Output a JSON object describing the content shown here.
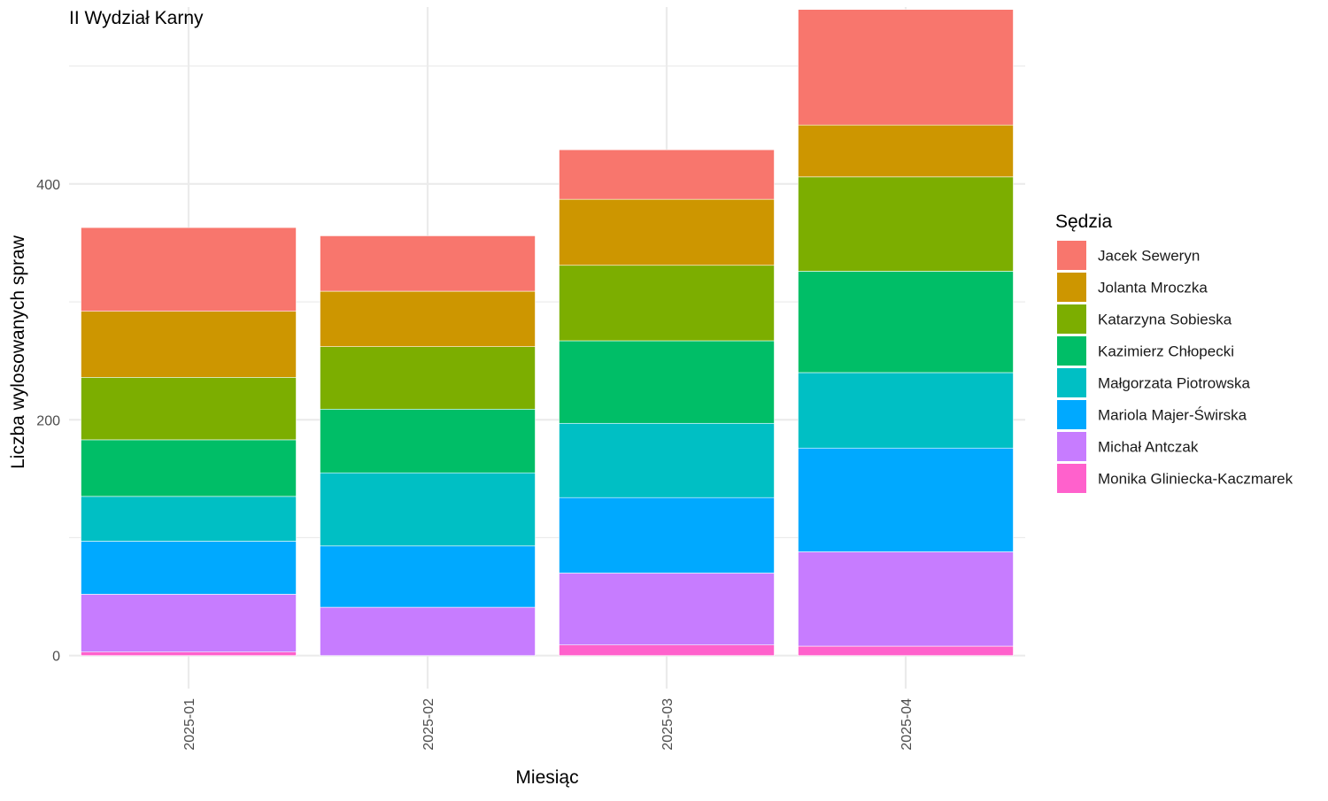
{
  "chart_data": {
    "type": "bar",
    "stacked": true,
    "title": "II Wydział Karny",
    "xlabel": "Miesiąc",
    "ylabel": "Liczba wylosowanych spraw",
    "ylim": [
      -28,
      550
    ],
    "y_ticks": [
      0,
      200,
      400
    ],
    "grid": true,
    "legend_title": "Sędzia",
    "legend_position": "right",
    "categories": [
      "2025-01",
      "2025-02",
      "2025-03",
      "2025-04"
    ],
    "series": [
      {
        "name": "Monika Gliniecka-Kaczmarek",
        "color": "#FF61CC",
        "values": [
          3,
          0,
          9,
          8
        ]
      },
      {
        "name": "Michał Antczak",
        "color": "#C77CFF",
        "values": [
          49,
          41,
          61,
          80
        ]
      },
      {
        "name": "Mariola Majer-Świrska",
        "color": "#00A9FF",
        "values": [
          45,
          52,
          64,
          88
        ]
      },
      {
        "name": "Małgorzata Piotrowska",
        "color": "#00BFC4",
        "values": [
          38,
          62,
          63,
          64
        ]
      },
      {
        "name": "Kazimierz Chłopecki",
        "color": "#00BE67",
        "values": [
          48,
          54,
          70,
          86
        ]
      },
      {
        "name": "Katarzyna Sobieska",
        "color": "#7CAE00",
        "values": [
          53,
          53,
          64,
          80
        ]
      },
      {
        "name": "Jolanta Mroczka",
        "color": "#CD9600",
        "values": [
          56,
          47,
          56,
          44
        ]
      },
      {
        "name": "Jacek Seweryn",
        "color": "#F8766D",
        "values": [
          71,
          47,
          42,
          98
        ]
      }
    ]
  }
}
